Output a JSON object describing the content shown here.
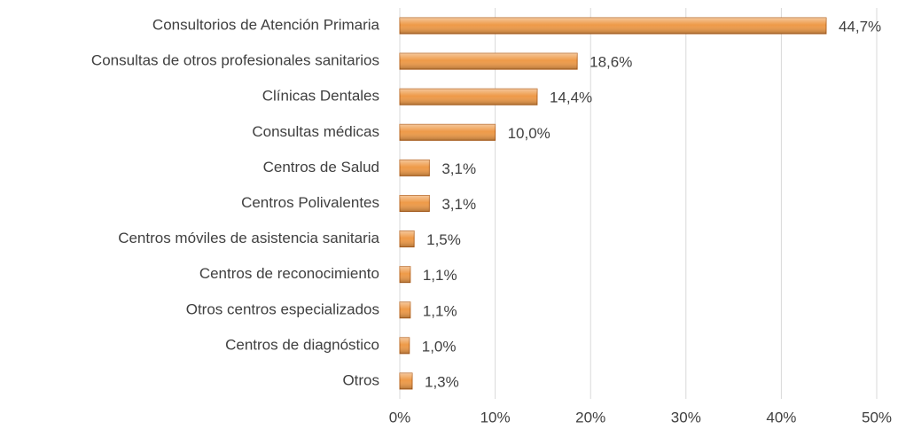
{
  "chart_data": {
    "type": "bar",
    "orientation": "horizontal",
    "categories": [
      "Consultorios de Atención Primaria",
      "Consultas de otros profesionales sanitarios",
      "Clínicas Dentales",
      "Consultas médicas",
      "Centros de Salud",
      "Centros Polivalentes",
      "Centros móviles de asistencia sanitaria",
      "Centros de reconocimiento",
      "Otros centros especializados",
      "Centros de diagnóstico",
      "Otros"
    ],
    "values": [
      44.7,
      18.6,
      14.4,
      10.0,
      3.1,
      3.1,
      1.5,
      1.1,
      1.1,
      1.0,
      1.3
    ],
    "value_labels": [
      "44,7%",
      "18,6%",
      "14,4%",
      "10,0%",
      "3,1%",
      "3,1%",
      "1,5%",
      "1,1%",
      "1,1%",
      "1,0%",
      "1,3%"
    ],
    "color": "#ee9a48",
    "xlim": [
      0,
      50
    ],
    "xticks": [
      {
        "value": 0,
        "label": "0%"
      },
      {
        "value": 10,
        "label": "10%"
      },
      {
        "value": 20,
        "label": "20%"
      },
      {
        "value": 30,
        "label": "30%"
      },
      {
        "value": 40,
        "label": "40%"
      },
      {
        "value": 50,
        "label": "50%"
      }
    ],
    "grid": true
  }
}
